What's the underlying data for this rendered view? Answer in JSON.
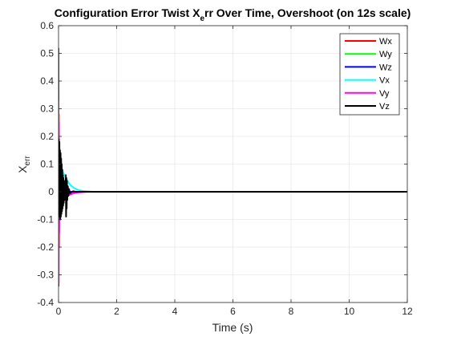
{
  "chart_data": {
    "type": "line",
    "title": "Configuration Error Twist X",
    "title_sub": "e",
    "title_rest": "rr Over Time, Overshoot (on 12s scale)",
    "xlabel": "Time (s)",
    "ylabel_main": "X",
    "ylabel_sub": "err",
    "xlim": [
      0,
      12
    ],
    "ylim": [
      -0.4,
      0.6
    ],
    "xticks": [
      0,
      2,
      4,
      6,
      8,
      10,
      12
    ],
    "xtick_labels": [
      "0",
      "2",
      "4",
      "6",
      "8",
      "10",
      "12"
    ],
    "yticks": [
      -0.4,
      -0.3,
      -0.2,
      -0.1,
      0,
      0.1,
      0.2,
      0.3,
      0.4,
      0.5,
      0.6
    ],
    "ytick_labels": [
      "-0.4",
      "-0.3",
      "-0.2",
      "-0.1",
      "0",
      "0.1",
      "0.2",
      "0.3",
      "0.4",
      "0.5",
      "0.6"
    ],
    "grid": true,
    "legend_position": "top-right",
    "series": [
      {
        "name": "Wx",
        "color": "#ff0000",
        "points": [
          [
            0,
            0.52
          ],
          [
            0.003,
            -0.34
          ],
          [
            0.008,
            0.28
          ],
          [
            0.015,
            -0.2
          ],
          [
            0.025,
            0.12
          ],
          [
            0.04,
            -0.06
          ],
          [
            0.06,
            0.03
          ],
          [
            0.1,
            0.01
          ],
          [
            0.2,
            0.0
          ],
          [
            12,
            0.0
          ]
        ]
      },
      {
        "name": "Wy",
        "color": "#00ff00",
        "points": [
          [
            0,
            0.06
          ],
          [
            0.01,
            -0.04
          ],
          [
            0.03,
            0.03
          ],
          [
            0.06,
            -0.02
          ],
          [
            0.1,
            0.01
          ],
          [
            0.2,
            0.0
          ],
          [
            12,
            0.0
          ]
        ]
      },
      {
        "name": "Wz",
        "color": "#0000ff",
        "points": [
          [
            0,
            -0.05
          ],
          [
            0.01,
            0.04
          ],
          [
            0.03,
            -0.03
          ],
          [
            0.06,
            0.02
          ],
          [
            0.1,
            -0.01
          ],
          [
            0.2,
            0.0
          ],
          [
            12,
            0.0
          ]
        ]
      },
      {
        "name": "Vx",
        "color": "#00ffff",
        "points": [
          [
            0,
            -0.2
          ],
          [
            0.01,
            0.15
          ],
          [
            0.03,
            -0.1
          ],
          [
            0.05,
            0.1
          ],
          [
            0.08,
            0.09
          ],
          [
            0.12,
            0.08
          ],
          [
            0.2,
            0.06
          ],
          [
            0.3,
            0.04
          ],
          [
            0.4,
            0.025
          ],
          [
            0.55,
            0.012
          ],
          [
            0.7,
            0.006
          ],
          [
            0.9,
            0.002
          ],
          [
            1.2,
            0.0
          ],
          [
            12,
            0.0
          ]
        ]
      },
      {
        "name": "Vy",
        "color": "#ff00ff",
        "points": [
          [
            0,
            0.33
          ],
          [
            0.004,
            -0.33
          ],
          [
            0.01,
            0.25
          ],
          [
            0.02,
            -0.15
          ],
          [
            0.035,
            0.08
          ],
          [
            0.05,
            -0.04
          ],
          [
            0.08,
            -0.02
          ],
          [
            0.12,
            0.02
          ],
          [
            0.2,
            -0.02
          ],
          [
            0.35,
            -0.012
          ],
          [
            0.5,
            -0.006
          ],
          [
            0.7,
            -0.002
          ],
          [
            1.0,
            0.0
          ],
          [
            12,
            0.0
          ]
        ]
      },
      {
        "name": "Vz",
        "color": "#000000",
        "points": [
          [
            0,
            0.0
          ],
          [
            0.01,
            0.19
          ],
          [
            0.02,
            -0.08
          ],
          [
            0.03,
            0.18
          ],
          [
            0.04,
            -0.09
          ],
          [
            0.05,
            0.15
          ],
          [
            0.06,
            -0.1
          ],
          [
            0.07,
            0.14
          ],
          [
            0.08,
            -0.09
          ],
          [
            0.09,
            0.12
          ],
          [
            0.1,
            -0.08
          ],
          [
            0.11,
            0.1
          ],
          [
            0.12,
            -0.07
          ],
          [
            0.13,
            0.08
          ],
          [
            0.14,
            -0.06
          ],
          [
            0.15,
            0.06
          ],
          [
            0.16,
            -0.05
          ],
          [
            0.17,
            0.05
          ],
          [
            0.18,
            -0.04
          ],
          [
            0.19,
            0.04
          ],
          [
            0.2,
            -0.03
          ],
          [
            0.21,
            0.03
          ],
          [
            0.22,
            -0.02
          ],
          [
            0.23,
            0.02
          ],
          [
            0.24,
            -0.02
          ],
          [
            0.25,
            0.06
          ],
          [
            0.26,
            -0.09
          ],
          [
            0.27,
            0.05
          ],
          [
            0.28,
            -0.06
          ],
          [
            0.29,
            0.04
          ],
          [
            0.3,
            -0.03
          ],
          [
            0.32,
            0.02
          ],
          [
            0.34,
            -0.015
          ],
          [
            0.36,
            0.01
          ],
          [
            0.4,
            -0.005
          ],
          [
            0.5,
            0.002
          ],
          [
            0.6,
            0.0
          ],
          [
            12,
            0.0
          ]
        ]
      }
    ]
  }
}
